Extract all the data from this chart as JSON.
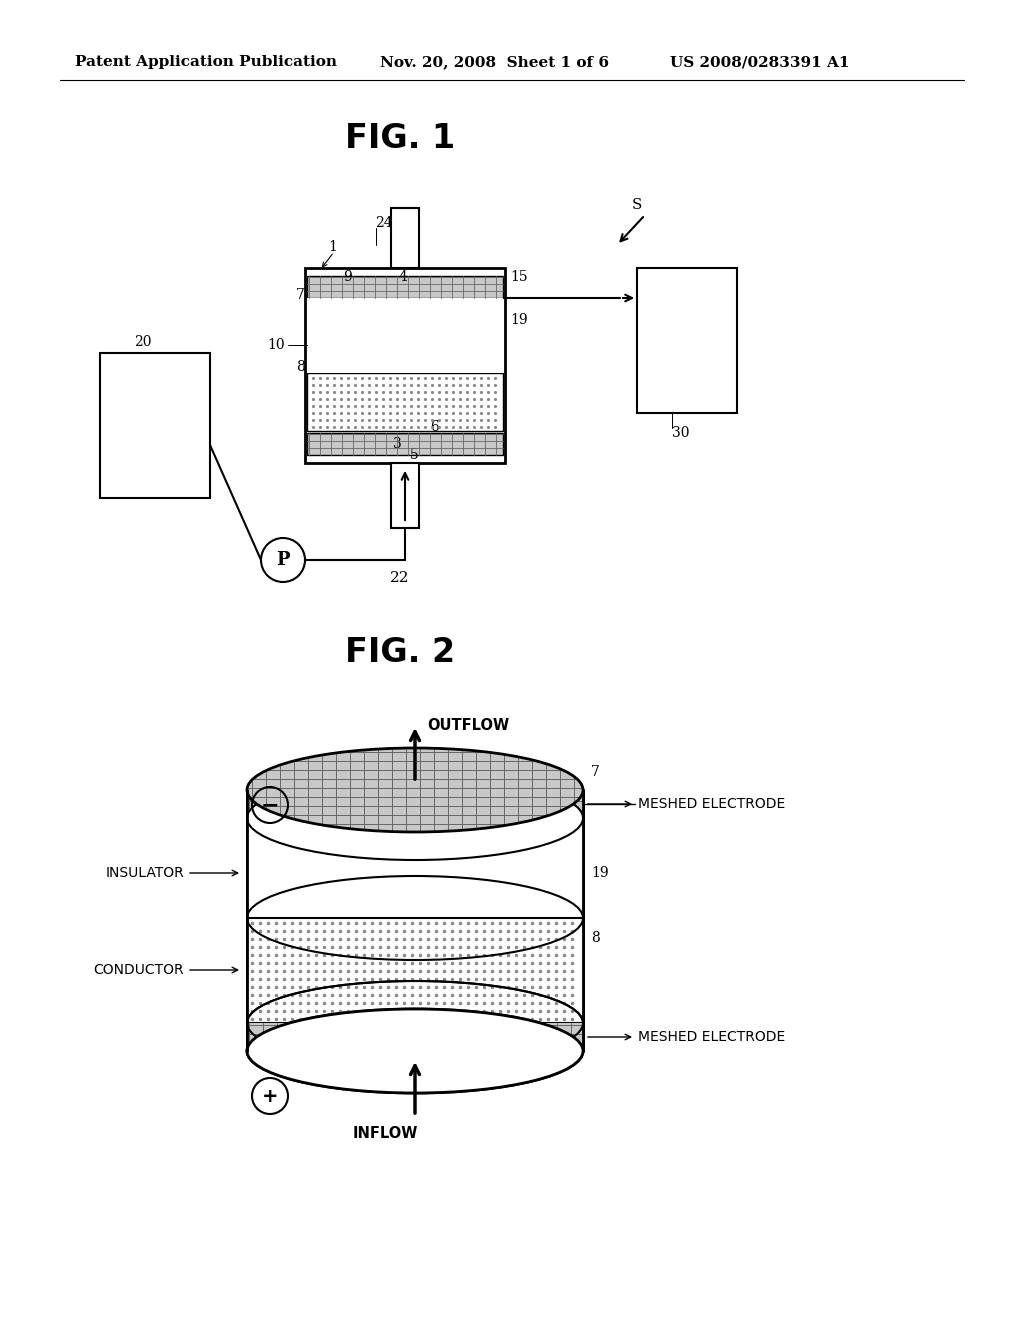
{
  "bg_color": "#ffffff",
  "header_left": "Patent Application Publication",
  "header_mid": "Nov. 20, 2008  Sheet 1 of 6",
  "header_right": "US 2008/0283391 A1",
  "fig1_title": "FIG. 1",
  "fig2_title": "FIG. 2",
  "line_color": "#000000",
  "mesh_fill": "#c8c8c8",
  "mesh_line": "#666666",
  "dot_color": "#888888"
}
